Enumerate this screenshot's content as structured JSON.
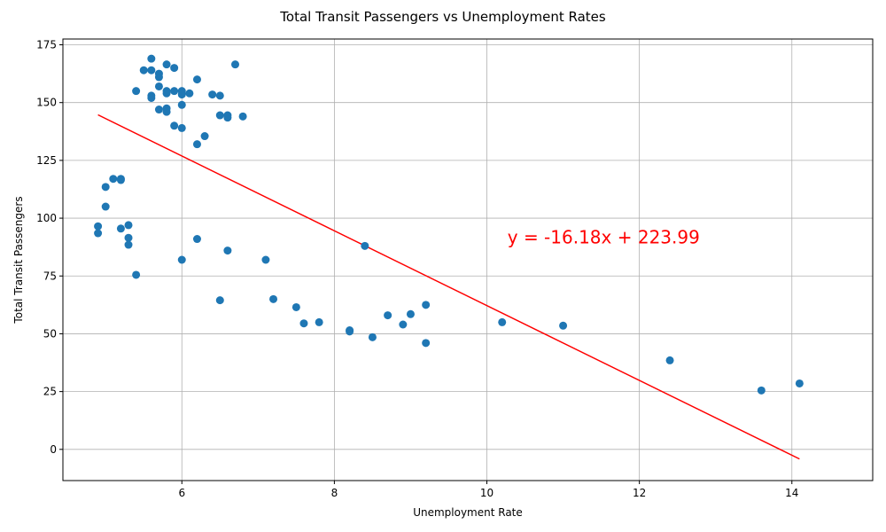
{
  "chart_data": {
    "type": "scatter",
    "title": "Total Transit Passengers vs Unemployment Rates",
    "xlabel": "Unemployment Rate",
    "ylabel": "Total Transit Passengers",
    "xlim": [
      4.44,
      15.06
    ],
    "ylim": [
      -13.5,
      177.5
    ],
    "xticks": [
      6,
      8,
      10,
      12,
      14
    ],
    "yticks": [
      0,
      25,
      50,
      75,
      100,
      125,
      150,
      175
    ],
    "grid": true,
    "point_color": "#1f77b4",
    "trendline": {
      "slope": -16.18,
      "intercept": 223.99,
      "x_range": [
        4.9,
        14.1
      ],
      "color": "#ff0000",
      "label": "y = -16.18x + 223.99",
      "label_position": [
        10.27,
        89
      ]
    },
    "points": [
      {
        "x": 5.6,
        "y": 169
      },
      {
        "x": 5.5,
        "y": 164
      },
      {
        "x": 5.6,
        "y": 164
      },
      {
        "x": 5.7,
        "y": 162.5
      },
      {
        "x": 5.7,
        "y": 161
      },
      {
        "x": 5.8,
        "y": 166.5
      },
      {
        "x": 5.9,
        "y": 165
      },
      {
        "x": 6.7,
        "y": 166.5
      },
      {
        "x": 6.2,
        "y": 160
      },
      {
        "x": 5.4,
        "y": 155
      },
      {
        "x": 5.6,
        "y": 153
      },
      {
        "x": 5.6,
        "y": 152
      },
      {
        "x": 5.7,
        "y": 157
      },
      {
        "x": 5.8,
        "y": 155
      },
      {
        "x": 5.8,
        "y": 154
      },
      {
        "x": 5.9,
        "y": 155
      },
      {
        "x": 6.0,
        "y": 155
      },
      {
        "x": 6.0,
        "y": 153.5
      },
      {
        "x": 6.1,
        "y": 154
      },
      {
        "x": 6.4,
        "y": 153.5
      },
      {
        "x": 6.5,
        "y": 153
      },
      {
        "x": 6.0,
        "y": 149
      },
      {
        "x": 5.7,
        "y": 147
      },
      {
        "x": 5.8,
        "y": 147.5
      },
      {
        "x": 5.8,
        "y": 146
      },
      {
        "x": 6.5,
        "y": 144.5
      },
      {
        "x": 6.6,
        "y": 144.5
      },
      {
        "x": 6.6,
        "y": 143.5
      },
      {
        "x": 6.8,
        "y": 144
      },
      {
        "x": 5.9,
        "y": 140
      },
      {
        "x": 6.0,
        "y": 139
      },
      {
        "x": 6.3,
        "y": 135.5
      },
      {
        "x": 6.2,
        "y": 132
      },
      {
        "x": 5.1,
        "y": 117
      },
      {
        "x": 5.2,
        "y": 117
      },
      {
        "x": 5.2,
        "y": 116.5
      },
      {
        "x": 5.0,
        "y": 113.5
      },
      {
        "x": 5.0,
        "y": 105
      },
      {
        "x": 4.9,
        "y": 96.5
      },
      {
        "x": 4.9,
        "y": 93.5
      },
      {
        "x": 5.3,
        "y": 97
      },
      {
        "x": 5.2,
        "y": 95.5
      },
      {
        "x": 5.3,
        "y": 91.5
      },
      {
        "x": 5.3,
        "y": 88.5
      },
      {
        "x": 5.4,
        "y": 75.5
      },
      {
        "x": 6.2,
        "y": 91
      },
      {
        "x": 6.6,
        "y": 86
      },
      {
        "x": 6.0,
        "y": 82
      },
      {
        "x": 7.1,
        "y": 82
      },
      {
        "x": 8.4,
        "y": 88
      },
      {
        "x": 7.2,
        "y": 65
      },
      {
        "x": 6.5,
        "y": 64.5
      },
      {
        "x": 7.5,
        "y": 61.5
      },
      {
        "x": 7.6,
        "y": 54.5
      },
      {
        "x": 7.8,
        "y": 55
      },
      {
        "x": 8.2,
        "y": 51.5
      },
      {
        "x": 8.2,
        "y": 51
      },
      {
        "x": 8.5,
        "y": 48.5
      },
      {
        "x": 8.7,
        "y": 58
      },
      {
        "x": 8.9,
        "y": 54
      },
      {
        "x": 9.0,
        "y": 58.5
      },
      {
        "x": 9.2,
        "y": 62.5
      },
      {
        "x": 9.2,
        "y": 46
      },
      {
        "x": 10.2,
        "y": 55
      },
      {
        "x": 11.0,
        "y": 53.5
      },
      {
        "x": 12.4,
        "y": 38.5
      },
      {
        "x": 13.6,
        "y": 25.5
      },
      {
        "x": 14.1,
        "y": 28.5
      }
    ]
  }
}
